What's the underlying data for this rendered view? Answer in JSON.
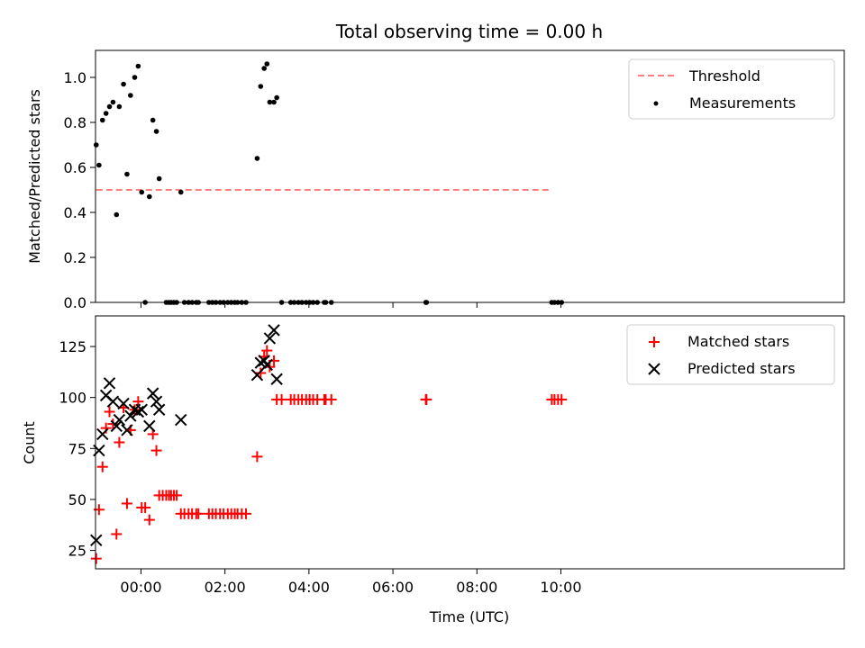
{
  "figure": {
    "title": "Total observing time = 0.00 h",
    "xlabel": "Time (UTC)"
  },
  "chart_data": [
    {
      "type": "scatter",
      "panel": "top",
      "ylabel": "Matched/Predicted stars",
      "ylim": [
        0,
        1.12
      ],
      "yticks": [
        0.0,
        0.2,
        0.4,
        0.6,
        0.8,
        1.0
      ],
      "ytick_labels": [
        "0.0",
        "0.2",
        "0.4",
        "0.6",
        "0.8",
        "1.0"
      ],
      "xlim": [
        -65,
        1005
      ],
      "xticks": [
        0,
        120,
        240,
        360,
        480,
        600
      ],
      "x_unit": "minutes from 00:00 UTC",
      "legend": {
        "position": "top-right",
        "entries": [
          "Threshold",
          "Measurements"
        ]
      },
      "threshold": {
        "name": "Threshold",
        "y": 0.5,
        "x": [
          -64,
          586
        ],
        "color": "#ff7f7f",
        "style": "dashed"
      },
      "measurements": {
        "name": "Measurements",
        "color": "#000000",
        "points": [
          [
            -64,
            0.7
          ],
          [
            -60,
            0.61
          ],
          [
            -55,
            0.81
          ],
          [
            -50,
            0.84
          ],
          [
            -45,
            0.87
          ],
          [
            -40,
            0.89
          ],
          [
            -35,
            0.39
          ],
          [
            -31,
            0.87
          ],
          [
            -25,
            0.97
          ],
          [
            -20,
            0.57
          ],
          [
            -15,
            0.92
          ],
          [
            -9,
            1.0
          ],
          [
            -4,
            1.05
          ],
          [
            1,
            0.49
          ],
          [
            12,
            0.47
          ],
          [
            17,
            0.81
          ],
          [
            22,
            0.76
          ],
          [
            26,
            0.55
          ],
          [
            57,
            0.49
          ],
          [
            6,
            0.0
          ],
          [
            36,
            0.0
          ],
          [
            40,
            0.0
          ],
          [
            43,
            0.0
          ],
          [
            47,
            0.0
          ],
          [
            51,
            0.0
          ],
          [
            62,
            0.0
          ],
          [
            68,
            0.0
          ],
          [
            73,
            0.0
          ],
          [
            79,
            0.0
          ],
          [
            82,
            0.0
          ],
          [
            97,
            0.0
          ],
          [
            102,
            0.0
          ],
          [
            107,
            0.0
          ],
          [
            113,
            0.0
          ],
          [
            118,
            0.0
          ],
          [
            124,
            0.0
          ],
          [
            129,
            0.0
          ],
          [
            134,
            0.0
          ],
          [
            138,
            0.0
          ],
          [
            144,
            0.0
          ],
          [
            150,
            0.0
          ],
          [
            166,
            0.64
          ],
          [
            171,
            0.96
          ],
          [
            176,
            1.04
          ],
          [
            180,
            1.06
          ],
          [
            184,
            0.89
          ],
          [
            190,
            0.89
          ],
          [
            194,
            0.91
          ],
          [
            201,
            0.0
          ],
          [
            214,
            0.0
          ],
          [
            219,
            0.0
          ],
          [
            225,
            0.0
          ],
          [
            230,
            0.0
          ],
          [
            236,
            0.0
          ],
          [
            241,
            0.0
          ],
          [
            246,
            0.0
          ],
          [
            252,
            0.0
          ],
          [
            262,
            0.0
          ],
          [
            264,
            0.0
          ],
          [
            272,
            0.0
          ],
          [
            407,
            0.0
          ],
          [
            408,
            0.0
          ],
          [
            587,
            0.0
          ],
          [
            591,
            0.0
          ],
          [
            596,
            0.0
          ],
          [
            601,
            0.0
          ]
        ]
      }
    },
    {
      "type": "scatter",
      "panel": "bottom",
      "ylabel": "Count",
      "ylim": [
        16,
        140
      ],
      "yticks": [
        25,
        50,
        75,
        100,
        125
      ],
      "ytick_labels": [
        "25",
        "50",
        "75",
        "100",
        "125"
      ],
      "xlim": [
        -65,
        1005
      ],
      "xticks": [
        0,
        120,
        240,
        360,
        480,
        600
      ],
      "xtick_labels": [
        "00:00",
        "02:00",
        "04:00",
        "06:00",
        "08:00",
        "10:00"
      ],
      "legend": {
        "position": "top-right",
        "entries": [
          "Matched stars",
          "Predicted stars"
        ]
      },
      "series": [
        {
          "name": "Matched stars",
          "marker": "plus",
          "color": "#ff0000",
          "points": [
            [
              -64,
              21
            ],
            [
              -60,
              45
            ],
            [
              -55,
              66
            ],
            [
              -50,
              85
            ],
            [
              -45,
              93
            ],
            [
              -40,
              87
            ],
            [
              -35,
              33
            ],
            [
              -31,
              78
            ],
            [
              -25,
              95
            ],
            [
              -20,
              48
            ],
            [
              -15,
              84
            ],
            [
              -9,
              94
            ],
            [
              -4,
              98
            ],
            [
              1,
              46
            ],
            [
              6,
              46
            ],
            [
              12,
              40
            ],
            [
              17,
              82
            ],
            [
              22,
              74
            ],
            [
              26,
              52
            ],
            [
              31,
              52
            ],
            [
              36,
              52
            ],
            [
              40,
              52
            ],
            [
              43,
              52
            ],
            [
              47,
              52
            ],
            [
              51,
              52
            ],
            [
              57,
              43
            ],
            [
              62,
              43
            ],
            [
              68,
              43
            ],
            [
              73,
              43
            ],
            [
              79,
              43
            ],
            [
              82,
              43
            ],
            [
              97,
              43
            ],
            [
              102,
              43
            ],
            [
              107,
              43
            ],
            [
              113,
              43
            ],
            [
              118,
              43
            ],
            [
              124,
              43
            ],
            [
              129,
              43
            ],
            [
              134,
              43
            ],
            [
              138,
              43
            ],
            [
              144,
              43
            ],
            [
              150,
              43
            ],
            [
              166,
              71
            ],
            [
              171,
              112
            ],
            [
              176,
              120
            ],
            [
              180,
              123
            ],
            [
              184,
              115
            ],
            [
              190,
              118
            ],
            [
              194,
              99
            ],
            [
              201,
              99
            ],
            [
              214,
              99
            ],
            [
              219,
              99
            ],
            [
              225,
              99
            ],
            [
              230,
              99
            ],
            [
              236,
              99
            ],
            [
              241,
              99
            ],
            [
              246,
              99
            ],
            [
              252,
              99
            ],
            [
              262,
              99
            ],
            [
              264,
              99
            ],
            [
              272,
              99
            ],
            [
              407,
              99
            ],
            [
              408,
              99
            ],
            [
              587,
              99
            ],
            [
              591,
              99
            ],
            [
              596,
              99
            ],
            [
              601,
              99
            ]
          ]
        },
        {
          "name": "Predicted stars",
          "marker": "x",
          "color": "#000000",
          "points": [
            [
              -64,
              30
            ],
            [
              -60,
              74
            ],
            [
              -55,
              82
            ],
            [
              -50,
              101
            ],
            [
              -45,
              107
            ],
            [
              -40,
              98
            ],
            [
              -35,
              86
            ],
            [
              -31,
              89
            ],
            [
              -25,
              97
            ],
            [
              -20,
              84
            ],
            [
              -15,
              91
            ],
            [
              -9,
              94
            ],
            [
              -4,
              93
            ],
            [
              1,
              94
            ],
            [
              12,
              86
            ],
            [
              17,
              102
            ],
            [
              22,
              98
            ],
            [
              26,
              94
            ],
            [
              57,
              89
            ],
            [
              166,
              111
            ],
            [
              171,
              117
            ],
            [
              176,
              118
            ],
            [
              180,
              116
            ],
            [
              184,
              129
            ],
            [
              190,
              133
            ],
            [
              194,
              109
            ]
          ]
        }
      ]
    }
  ]
}
